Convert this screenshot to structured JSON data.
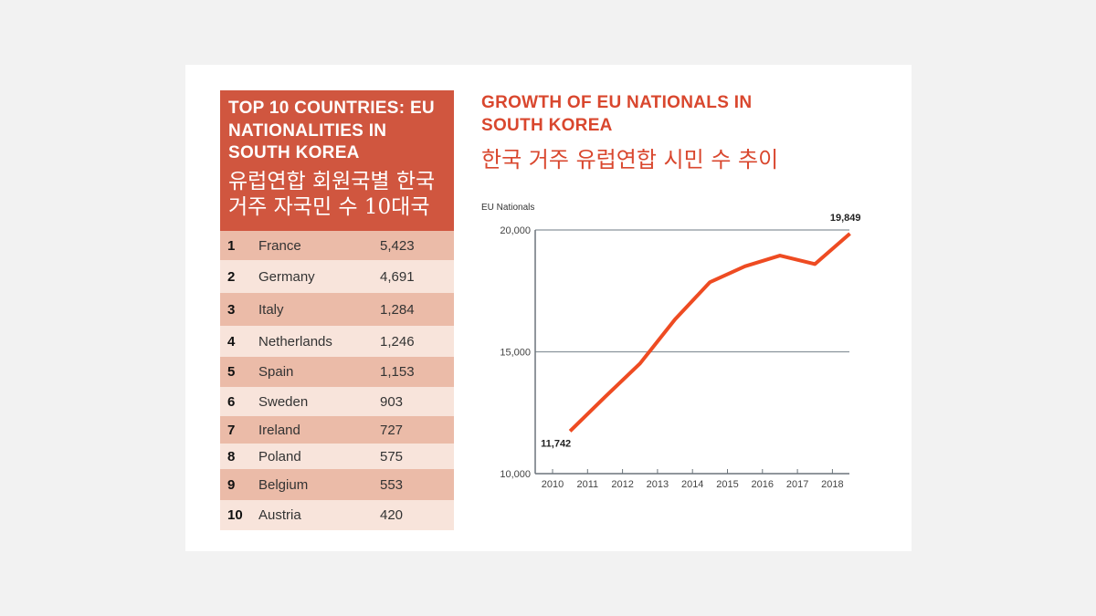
{
  "table": {
    "title_en": "TOP 10 COUNTRIES: EU NATIONALITIES IN SOUTH KOREA",
    "title_ko_line1": "유럽연합 회원국별 한국",
    "title_ko_line2": "거주 자국민 수 10대국",
    "rows": [
      {
        "rank": "1",
        "country": "France",
        "value": "5,423"
      },
      {
        "rank": "2",
        "country": "Germany",
        "value": "4,691"
      },
      {
        "rank": "3",
        "country": "Italy",
        "value": "1,284"
      },
      {
        "rank": "4",
        "country": "Netherlands",
        "value": "1,246"
      },
      {
        "rank": "5",
        "country": "Spain",
        "value": "1,153"
      },
      {
        "rank": "6",
        "country": "Sweden",
        "value": "903"
      },
      {
        "rank": "7",
        "country": "Ireland",
        "value": "727"
      },
      {
        "rank": "8",
        "country": "Poland",
        "value": "575"
      },
      {
        "rank": "9",
        "country": "Belgium",
        "value": "553"
      },
      {
        "rank": "10",
        "country": "Austria",
        "value": "420"
      }
    ]
  },
  "chart_data": {
    "type": "line",
    "title": "GROWTH OF EU NATIONALS IN SOUTH KOREA",
    "title_ko": "한국 거주 유럽연합 시민 수 추이",
    "ylabel": "EU Nationals",
    "ylim": [
      10000,
      20000
    ],
    "yticks": [
      "10,000",
      "15,000",
      "20,000"
    ],
    "xticks": [
      "2010",
      "2011",
      "2012",
      "2013",
      "2014",
      "2015",
      "2016",
      "2017",
      "2018"
    ],
    "grid": true,
    "color": "#ee4b22",
    "x": [
      2010,
      2011,
      2012,
      2013,
      2014,
      2015,
      2016,
      2017,
      2018
    ],
    "values": [
      11742,
      13150,
      14520,
      16330,
      17860,
      18510,
      18950,
      18600,
      19849
    ],
    "annotations": [
      "11,742",
      "19,849"
    ]
  }
}
